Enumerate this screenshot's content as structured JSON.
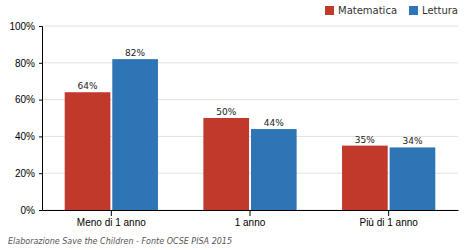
{
  "chart_data": {
    "type": "bar",
    "categories": [
      "Meno di 1 anno",
      "1 anno",
      "Più di 1 anno"
    ],
    "series": [
      {
        "name": "Matematica",
        "color": "#c0392b",
        "values": [
          64,
          50,
          35
        ],
        "value_labels": [
          "64%",
          "50%",
          "35%"
        ]
      },
      {
        "name": "Lettura",
        "color": "#2e75b6",
        "values": [
          82,
          44,
          34
        ],
        "value_labels": [
          "82%",
          "44%",
          "34%"
        ]
      }
    ],
    "ylim": [
      0,
      100
    ],
    "yticks": [
      {
        "value": 0,
        "label": "0%"
      },
      {
        "value": 20,
        "label": "20%"
      },
      {
        "value": 40,
        "label": "40%"
      },
      {
        "value": 60,
        "label": "60%"
      },
      {
        "value": 80,
        "label": "80%"
      },
      {
        "value": 100,
        "label": "100%"
      }
    ],
    "grid": true,
    "legend": "upper right",
    "data_labels": true,
    "annotations": [
      "Elaborazione Save the Children - Fonte OCSE PISA 2015"
    ]
  }
}
